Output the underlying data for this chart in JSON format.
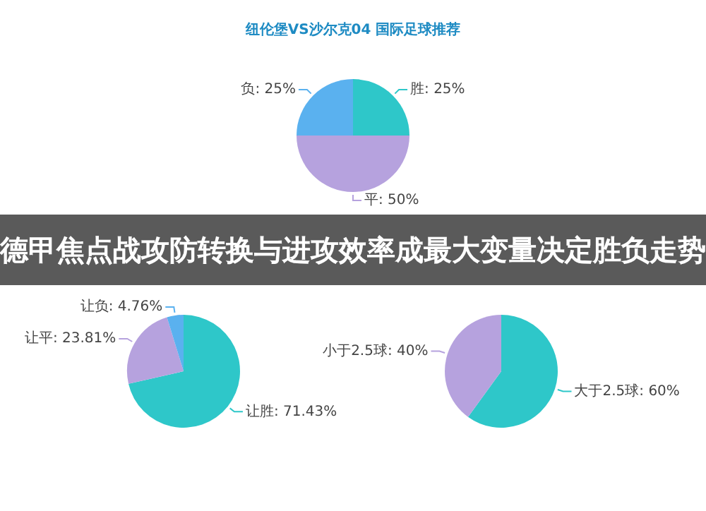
{
  "chart_data": [
    {
      "type": "pie",
      "title": "纽伦堡VS沙尔克04 国际足球推荐",
      "categories": [
        "胜",
        "平",
        "负"
      ],
      "values": [
        25,
        50,
        25
      ],
      "value_labels": [
        "25%",
        "50%",
        "25%"
      ],
      "colors": [
        "#2ec7c9",
        "#b6a2de",
        "#5ab1ef"
      ],
      "legend": false,
      "annotations": [
        "德甲焦点战攻防转换与进攻效率成最大变量决定胜负走势"
      ]
    },
    {
      "type": "pie",
      "categories": [
        "让胜",
        "让平",
        "让负"
      ],
      "values": [
        71.43,
        23.81,
        4.76
      ],
      "value_labels": [
        "71.43%",
        "23.81%",
        "4.76%"
      ],
      "colors": [
        "#2ec7c9",
        "#b6a2de",
        "#5ab1ef"
      ],
      "legend": false
    },
    {
      "type": "pie",
      "categories": [
        "大于2.5球",
        "小于2.5球"
      ],
      "values": [
        60,
        40
      ],
      "value_labels": [
        "60%",
        "40%"
      ],
      "colors": [
        "#2ec7c9",
        "#b6a2de"
      ],
      "legend": false
    }
  ]
}
